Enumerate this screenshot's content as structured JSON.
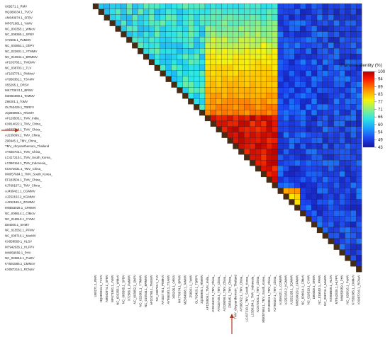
{
  "chart_data": {
    "type": "heatmap",
    "title": "",
    "legend_title": "Pairwise identity (%)",
    "legend_ticks": [
      "100",
      "94",
      "89",
      "83",
      "77",
      "71",
      "66",
      "60",
      "54",
      "49",
      "43"
    ],
    "color_range": [
      43,
      100
    ],
    "highlighted_label": "TMV_chrysanthemum_Thailand",
    "labels": [
      "U69271.1_RMV",
      "HQ389334.1_TVCV",
      "AM040974.1_SFBV",
      "MF671981.1_YoMV",
      "NC_003355.1_WMoV",
      "NC_008365.1_SFBV",
      "X72586.1_PaMMV",
      "NC_003852.1_ObPV",
      "NC_022601.1_YTMMV",
      "NC_010944.1_BRMMV",
      "AF103783.1_TMGMV",
      "NC_038703.1_TLV",
      "AF103778.1_PMMoV",
      "AY956381.1_TSAMV",
      "X55295.1_ORSV",
      "MK770674.1_BPMV",
      "MZ964898.1_TeMMV",
      "Z98201.1_ToMV",
      "OL763429.1_TBRFV",
      "JQ285996.1_RheMV",
      "AF126505.1_TMV_India_",
      "KX814622.1_TMV_China_",
      "AY633749.1_TMV_China_",
      "AJ239099.1_TMV_China_",
      "Z96945.1_TMV_China_",
      "TMV_chrysanthemum_Thailand",
      "AY566702.1_TMV_China_",
      "LC417210.1_TMV_South_Korea_",
      "LC390164.1_TMV_Indonesia_",
      "KC572631.1_TMV_China_",
      "MN057684.1_TMV_South_Korea_",
      "EF183504.1_TMV_China_",
      "KJ769107.1_TMV_China_",
      "AJ459421.1_CGMMV",
      "AJ252162.2_KGMMV",
      "AJ252165.1_ZGMMV",
      "MN593029.1_CFMMV",
      "NC_008614.1_ClMoV",
      "NC_016519.1_CYMV",
      "D84000.1_SHMV",
      "NC_015552.1_PFMV",
      "NC_008716.1_MarMV",
      "KX958569.1_HLSV",
      "MT942635.1_HLFPV",
      "MN059559.1_PHV",
      "NC_026816.1_PuMV",
      "KY581585.1_CMMoV",
      "KX087216.1_RCNaV"
    ]
  }
}
